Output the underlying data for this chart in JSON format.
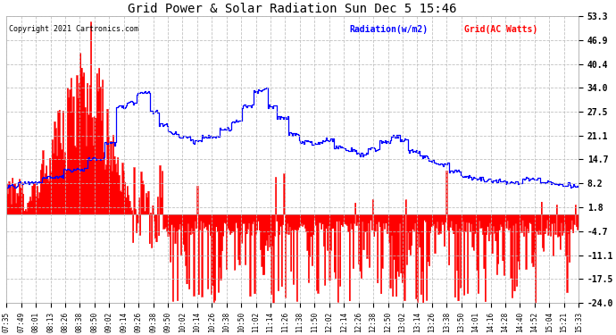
{
  "title": "Grid Power & Solar Radiation Sun Dec 5 15:46",
  "copyright": "Copyright 2021 Cartronics.com",
  "legend_radiation": "Radiation(w/m2)",
  "legend_grid": "Grid(AC Watts)",
  "yticks_right": [
    53.3,
    46.9,
    40.4,
    34.0,
    27.5,
    21.1,
    14.7,
    8.2,
    1.8,
    -4.7,
    -11.1,
    -17.5,
    -24.0
  ],
  "ymin": -24.0,
  "ymax": 53.3,
  "background_color": "#ffffff",
  "plot_bg_color": "#ffffff",
  "radiation_color": "#0000ff",
  "grid_color": "#ff0000",
  "grid_line_color": "#bbbbbb",
  "title_color": "#000000",
  "copyright_color": "#000000",
  "xtick_labels": [
    "07:35",
    "07:49",
    "08:01",
    "08:13",
    "08:26",
    "08:38",
    "08:50",
    "09:02",
    "09:14",
    "09:26",
    "09:38",
    "09:50",
    "10:02",
    "10:14",
    "10:26",
    "10:38",
    "10:50",
    "11:02",
    "11:14",
    "11:26",
    "11:38",
    "11:50",
    "12:02",
    "12:14",
    "12:26",
    "12:38",
    "12:50",
    "13:02",
    "13:14",
    "13:26",
    "13:38",
    "13:50",
    "14:01",
    "14:16",
    "14:28",
    "14:40",
    "14:52",
    "15:04",
    "15:21",
    "15:33"
  ],
  "num_points": 490
}
